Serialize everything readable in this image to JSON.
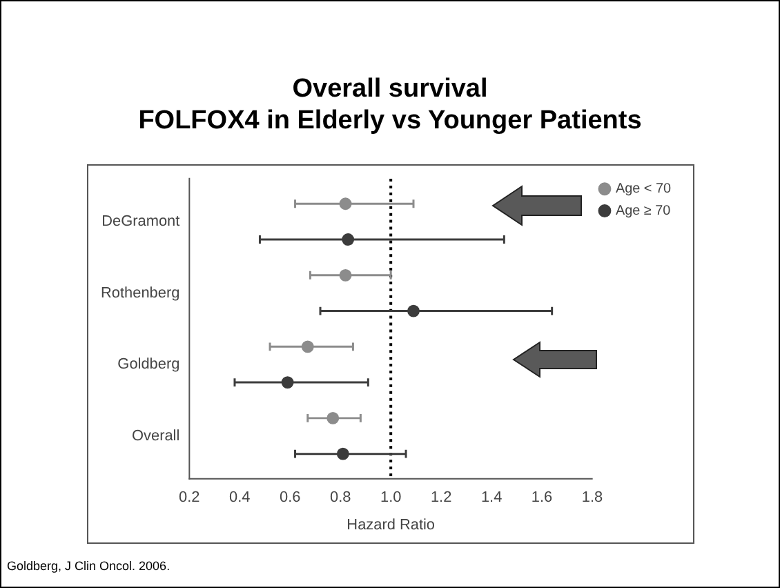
{
  "chart_data": {
    "type": "scatter",
    "orientation": "horizontal",
    "title": "Overall survival\nFOLFOX4 in Elderly vs Younger Patients",
    "xlabel": "Hazard Ratio",
    "categories": [
      "DeGramont",
      "Rothenberg",
      "Goldberg",
      "Overall"
    ],
    "series": [
      {
        "name": "Age < 70",
        "color": "#8c8c8c",
        "values": [
          0.82,
          0.82,
          0.67,
          0.77
        ],
        "errors": [
          [
            0.62,
            1.09
          ],
          [
            0.68,
            1.0
          ],
          [
            0.52,
            0.85
          ],
          [
            0.67,
            0.88
          ]
        ]
      },
      {
        "name": "Age ≥ 70",
        "color": "#3c3c3c",
        "values": [
          0.83,
          1.09,
          0.59,
          0.81
        ],
        "errors": [
          [
            0.48,
            1.45
          ],
          [
            0.72,
            1.64
          ],
          [
            0.38,
            0.91
          ],
          [
            0.62,
            1.06
          ]
        ]
      }
    ],
    "xlim": [
      0.2,
      1.8
    ],
    "xticks": [
      0.2,
      0.4,
      0.6,
      0.8,
      {
        "value": 1,
        "label": "1.0"
      },
      1.2,
      1.4,
      1.6,
      1.8
    ],
    "ref_lines": [
      {
        "axis": "x",
        "value": 1.0,
        "line_style": "dotted",
        "color": "#000000"
      }
    ],
    "marker": "circle",
    "legend": "top right",
    "grid": false,
    "annotations": [
      "Goldberg, J Clin Oncol. 2006."
    ]
  }
}
